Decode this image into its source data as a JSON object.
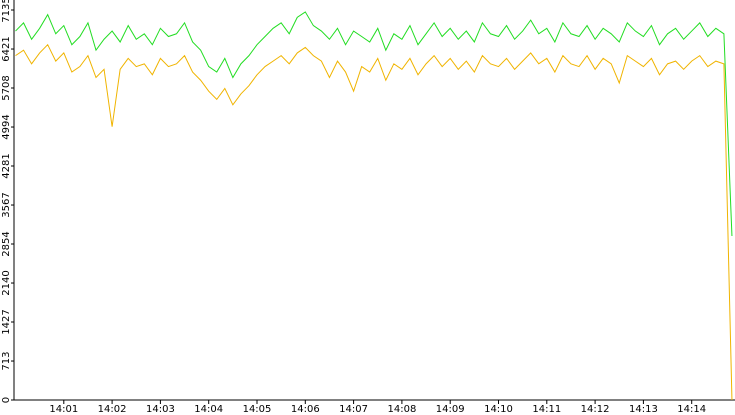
{
  "chart_data": {
    "type": "line",
    "categories": [
      null,
      null,
      null,
      null,
      null,
      null,
      "14:01",
      null,
      null,
      null,
      null,
      null,
      "14:02",
      null,
      null,
      null,
      null,
      null,
      "14:03",
      null,
      null,
      null,
      null,
      null,
      "14:04",
      null,
      null,
      null,
      null,
      null,
      "14:05",
      null,
      null,
      null,
      null,
      null,
      "14:06",
      null,
      null,
      null,
      null,
      null,
      "14:07",
      null,
      null,
      null,
      null,
      null,
      "14:08",
      null,
      null,
      null,
      null,
      null,
      "14:09",
      null,
      null,
      null,
      null,
      null,
      "14:10",
      null,
      null,
      null,
      null,
      null,
      "14:11",
      null,
      null,
      null,
      null,
      null,
      "14:12",
      null,
      null,
      null,
      null,
      null,
      "14:13",
      null,
      null,
      null,
      null,
      null,
      "14:14",
      null,
      null,
      null,
      null,
      null
    ],
    "series": [
      {
        "color": "#22dd22",
        "values": [
          6750,
          6900,
          6600,
          6800,
          7050,
          6700,
          6850,
          6500,
          6650,
          6900,
          6400,
          6600,
          6750,
          6550,
          6850,
          6600,
          6700,
          6500,
          6800,
          6650,
          6700,
          6900,
          6550,
          6400,
          6100,
          6000,
          6250,
          5900,
          6150,
          6300,
          6500,
          6650,
          6800,
          6900,
          6700,
          7000,
          7100,
          6850,
          6750,
          6600,
          6800,
          6500,
          6750,
          6650,
          6550,
          6800,
          6400,
          6700,
          6600,
          6850,
          6500,
          6700,
          6900,
          6650,
          6800,
          6600,
          6750,
          6550,
          6900,
          6700,
          6650,
          6850,
          6600,
          6750,
          6950,
          6700,
          6800,
          6550,
          6900,
          6700,
          6650,
          6850,
          6600,
          6800,
          6700,
          6550,
          6900,
          6750,
          6650,
          6850,
          6500,
          6700,
          6800,
          6600,
          6750,
          6900,
          6650,
          6800,
          6700,
          3000
        ]
      },
      {
        "color": "#f0b400",
        "values": [
          6300,
          6400,
          6150,
          6350,
          6500,
          6200,
          6350,
          6000,
          6100,
          6300,
          5900,
          6050,
          5000,
          6050,
          6250,
          6100,
          6150,
          5950,
          6250,
          6100,
          6150,
          6300,
          6000,
          5850,
          5650,
          5500,
          5700,
          5400,
          5600,
          5750,
          5950,
          6100,
          6200,
          6300,
          6150,
          6350,
          6450,
          6300,
          6200,
          5900,
          6200,
          6000,
          5650,
          6100,
          6000,
          6250,
          5850,
          6150,
          6050,
          6250,
          5950,
          6150,
          6300,
          6100,
          6250,
          6050,
          6200,
          6000,
          6300,
          6150,
          6100,
          6250,
          6050,
          6200,
          6350,
          6150,
          6250,
          6000,
          6300,
          6150,
          6100,
          6300,
          6050,
          6250,
          6150,
          5800,
          6300,
          6200,
          6100,
          6250,
          5950,
          6150,
          6200,
          6050,
          6200,
          6300,
          6100,
          6200,
          6150,
          0
        ]
      }
    ],
    "ylim": [
      0,
      7135
    ],
    "yticks": [
      0,
      713,
      1427,
      2140,
      2854,
      3567,
      4281,
      4994,
      5708,
      6421,
      7135
    ],
    "grid": false
  }
}
